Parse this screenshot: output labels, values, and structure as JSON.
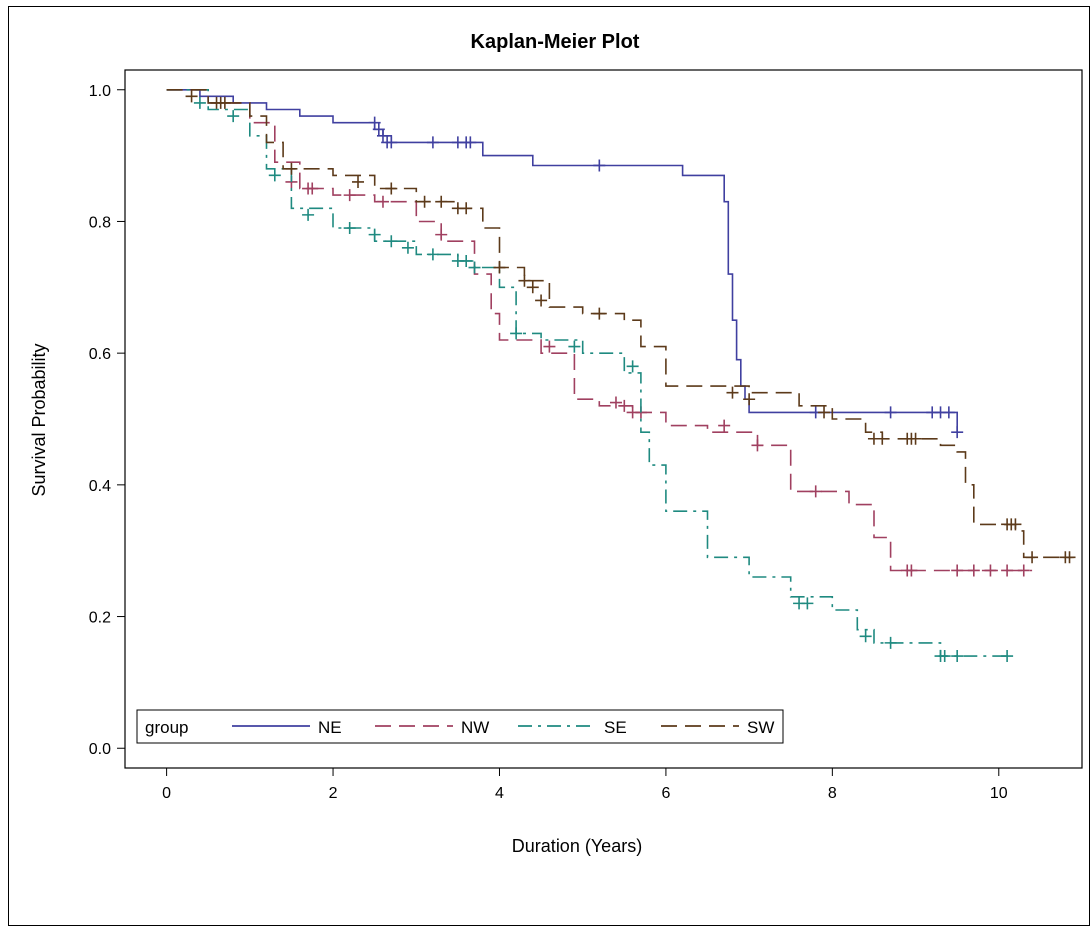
{
  "chart_data": {
    "type": "line",
    "title": "Kaplan-Meier Plot",
    "xlabel": "Duration (Years)",
    "ylabel": "Survival Probability",
    "xlim": [
      -0.5,
      11
    ],
    "ylim": [
      -0.03,
      1.03
    ],
    "xticks": [
      0,
      2,
      4,
      6,
      8,
      10
    ],
    "yticks": [
      0.0,
      0.2,
      0.4,
      0.6,
      0.8,
      1.0
    ],
    "xtick_labels": [
      "0",
      "2",
      "4",
      "6",
      "8",
      "10"
    ],
    "ytick_labels": [
      "0.0",
      "0.2",
      "0.4",
      "0.6",
      "0.8",
      "1.0"
    ],
    "grid": false,
    "legend": {
      "title": "group",
      "placement": "bottom-left"
    },
    "series": [
      {
        "name": "NE",
        "color": "#4040a0",
        "dash": "solid",
        "x": [
          0,
          0.4,
          0.8,
          1.2,
          1.6,
          2.0,
          2.5,
          2.6,
          2.7,
          3.8,
          4.4,
          6.2,
          6.7,
          6.75,
          6.8,
          6.85,
          6.9,
          6.95,
          7.0,
          9.5
        ],
        "y": [
          1.0,
          0.99,
          0.98,
          0.97,
          0.96,
          0.95,
          0.94,
          0.93,
          0.92,
          0.9,
          0.885,
          0.87,
          0.83,
          0.72,
          0.65,
          0.59,
          0.55,
          0.53,
          0.51,
          0.48
        ],
        "censor_x": [
          2.5,
          2.55,
          2.6,
          2.65,
          2.7,
          3.2,
          3.5,
          3.6,
          3.65,
          5.2,
          7.8,
          8.7,
          9.2,
          9.3,
          9.4,
          9.5
        ],
        "censor_y": [
          0.95,
          0.94,
          0.93,
          0.92,
          0.92,
          0.92,
          0.92,
          0.92,
          0.92,
          0.885,
          0.51,
          0.51,
          0.51,
          0.51,
          0.51,
          0.48
        ]
      },
      {
        "name": "NW",
        "color": "#a04060",
        "dash": "long",
        "x": [
          0,
          0.5,
          1.0,
          1.3,
          1.6,
          2.0,
          2.5,
          3.0,
          3.3,
          3.7,
          3.9,
          4.0,
          4.5,
          4.9,
          5.2,
          5.6,
          6.0,
          6.5,
          7.1,
          7.5,
          8.2,
          8.5,
          8.7,
          10.4
        ],
        "y": [
          1.0,
          0.98,
          0.95,
          0.89,
          0.85,
          0.84,
          0.83,
          0.8,
          0.77,
          0.72,
          0.66,
          0.62,
          0.6,
          0.53,
          0.52,
          0.51,
          0.49,
          0.48,
          0.46,
          0.39,
          0.37,
          0.32,
          0.27,
          0.27
        ],
        "censor_x": [
          1.5,
          1.7,
          1.75,
          2.2,
          2.6,
          3.3,
          4.6,
          5.4,
          5.5,
          5.6,
          5.7,
          6.7,
          7.1,
          7.8,
          8.9,
          8.95,
          9.5,
          9.7,
          9.9,
          10.1,
          10.3
        ],
        "censor_y": [
          0.86,
          0.85,
          0.85,
          0.84,
          0.83,
          0.78,
          0.61,
          0.525,
          0.52,
          0.51,
          0.51,
          0.49,
          0.46,
          0.39,
          0.27,
          0.27,
          0.27,
          0.27,
          0.27,
          0.27,
          0.27
        ]
      },
      {
        "name": "SE",
        "color": "#1f8a80",
        "dash": "dashdot",
        "x": [
          0,
          0.5,
          1.0,
          1.2,
          1.5,
          2.0,
          2.5,
          3.0,
          3.5,
          3.7,
          4.0,
          4.2,
          4.5,
          5.0,
          5.5,
          5.7,
          5.8,
          6.0,
          6.5,
          7.0,
          7.5,
          8.0,
          8.3,
          8.5,
          9.0,
          9.3,
          10.1
        ],
        "y": [
          1.0,
          0.97,
          0.93,
          0.88,
          0.82,
          0.79,
          0.77,
          0.75,
          0.74,
          0.73,
          0.7,
          0.63,
          0.62,
          0.6,
          0.57,
          0.48,
          0.43,
          0.36,
          0.29,
          0.26,
          0.23,
          0.21,
          0.18,
          0.16,
          0.16,
          0.14,
          0.14
        ],
        "censor_x": [
          0.4,
          0.8,
          1.3,
          1.7,
          2.2,
          2.5,
          2.7,
          2.9,
          3.2,
          3.5,
          3.6,
          3.7,
          4.2,
          4.9,
          5.6,
          7.6,
          7.7,
          8.4,
          8.7,
          9.3,
          9.35,
          9.5,
          10.1
        ],
        "censor_y": [
          0.98,
          0.96,
          0.87,
          0.81,
          0.79,
          0.78,
          0.77,
          0.76,
          0.75,
          0.74,
          0.74,
          0.73,
          0.63,
          0.61,
          0.58,
          0.22,
          0.22,
          0.17,
          0.16,
          0.14,
          0.14,
          0.14,
          0.14
        ]
      },
      {
        "name": "SW",
        "color": "#5c3a1a",
        "dash": "long",
        "x": [
          0,
          0.5,
          1.0,
          1.2,
          1.4,
          2.0,
          2.5,
          3.0,
          3.5,
          3.8,
          4.0,
          4.3,
          4.6,
          5.0,
          5.5,
          5.7,
          6.0,
          7.0,
          7.6,
          8.0,
          8.4,
          8.6,
          9.3,
          9.5,
          9.6,
          9.7,
          10.2,
          10.3,
          10.9
        ],
        "y": [
          1.0,
          0.98,
          0.96,
          0.92,
          0.88,
          0.87,
          0.85,
          0.83,
          0.82,
          0.79,
          0.73,
          0.71,
          0.67,
          0.66,
          0.65,
          0.61,
          0.55,
          0.54,
          0.52,
          0.5,
          0.48,
          0.47,
          0.46,
          0.45,
          0.4,
          0.34,
          0.33,
          0.29,
          0.29
        ],
        "censor_x": [
          0.3,
          0.6,
          0.65,
          0.7,
          1.5,
          2.3,
          2.7,
          3.1,
          3.3,
          3.5,
          3.6,
          4.0,
          4.3,
          4.4,
          4.5,
          5.2,
          6.8,
          7.0,
          7.9,
          8.5,
          8.6,
          8.9,
          8.95,
          9.0,
          10.1,
          10.15,
          10.2,
          10.4,
          10.8,
          10.85
        ],
        "censor_y": [
          0.99,
          0.98,
          0.98,
          0.98,
          0.88,
          0.86,
          0.85,
          0.83,
          0.83,
          0.82,
          0.82,
          0.73,
          0.71,
          0.7,
          0.68,
          0.66,
          0.54,
          0.53,
          0.51,
          0.47,
          0.47,
          0.47,
          0.47,
          0.47,
          0.34,
          0.34,
          0.34,
          0.29,
          0.29,
          0.29
        ]
      }
    ]
  }
}
